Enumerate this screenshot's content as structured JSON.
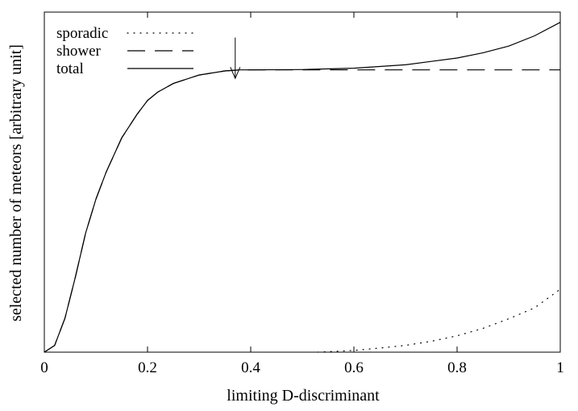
{
  "chart_data": {
    "type": "line",
    "xlabel": "limiting D-discriminant",
    "ylabel": "selected number of meteors [arbitrary unit]",
    "xlim": [
      0,
      1
    ],
    "ylim": [
      0,
      1
    ],
    "yticks_labeled": false,
    "x_ticks": [
      {
        "value": 0,
        "label": "0"
      },
      {
        "value": 0.2,
        "label": "0.2"
      },
      {
        "value": 0.4,
        "label": "0.4"
      },
      {
        "value": 0.6,
        "label": "0.6"
      },
      {
        "value": 0.8,
        "label": "0.8"
      },
      {
        "value": 1,
        "label": "1"
      }
    ],
    "legend_position": "top-left",
    "grid": false,
    "annotation": {
      "type": "arrow-down",
      "x": 0.37,
      "y_top": 0.925,
      "y_bottom": 0.805
    },
    "series": [
      {
        "name": "sporadic",
        "style": "dotted",
        "color": "#000000",
        "x": [
          0.53,
          0.6,
          0.65,
          0.7,
          0.75,
          0.8,
          0.85,
          0.9,
          0.95,
          1.0
        ],
        "y": [
          0.0,
          0.005,
          0.012,
          0.02,
          0.032,
          0.048,
          0.07,
          0.098,
          0.13,
          0.185
        ]
      },
      {
        "name": "shower",
        "style": "dashed",
        "color": "#000000",
        "x": [
          0.0,
          0.02,
          0.04,
          0.06,
          0.08,
          0.1,
          0.12,
          0.15,
          0.18,
          0.2,
          0.22,
          0.25,
          0.3,
          0.35,
          0.38,
          0.4,
          0.5,
          0.6,
          0.7,
          0.8,
          0.9,
          1.0
        ],
        "y": [
          0.0,
          0.02,
          0.1,
          0.22,
          0.35,
          0.45,
          0.53,
          0.63,
          0.7,
          0.74,
          0.765,
          0.79,
          0.815,
          0.827,
          0.83,
          0.83,
          0.83,
          0.83,
          0.83,
          0.83,
          0.83,
          0.83
        ]
      },
      {
        "name": "total",
        "style": "solid",
        "color": "#000000",
        "x": [
          0.0,
          0.02,
          0.04,
          0.06,
          0.08,
          0.1,
          0.12,
          0.15,
          0.18,
          0.2,
          0.22,
          0.25,
          0.3,
          0.35,
          0.38,
          0.4,
          0.5,
          0.6,
          0.65,
          0.7,
          0.75,
          0.8,
          0.85,
          0.9,
          0.95,
          1.0
        ],
        "y": [
          0.0,
          0.02,
          0.1,
          0.22,
          0.35,
          0.45,
          0.53,
          0.63,
          0.7,
          0.74,
          0.765,
          0.79,
          0.815,
          0.827,
          0.83,
          0.83,
          0.831,
          0.835,
          0.84,
          0.845,
          0.855,
          0.865,
          0.88,
          0.9,
          0.93,
          0.97
        ]
      }
    ]
  }
}
